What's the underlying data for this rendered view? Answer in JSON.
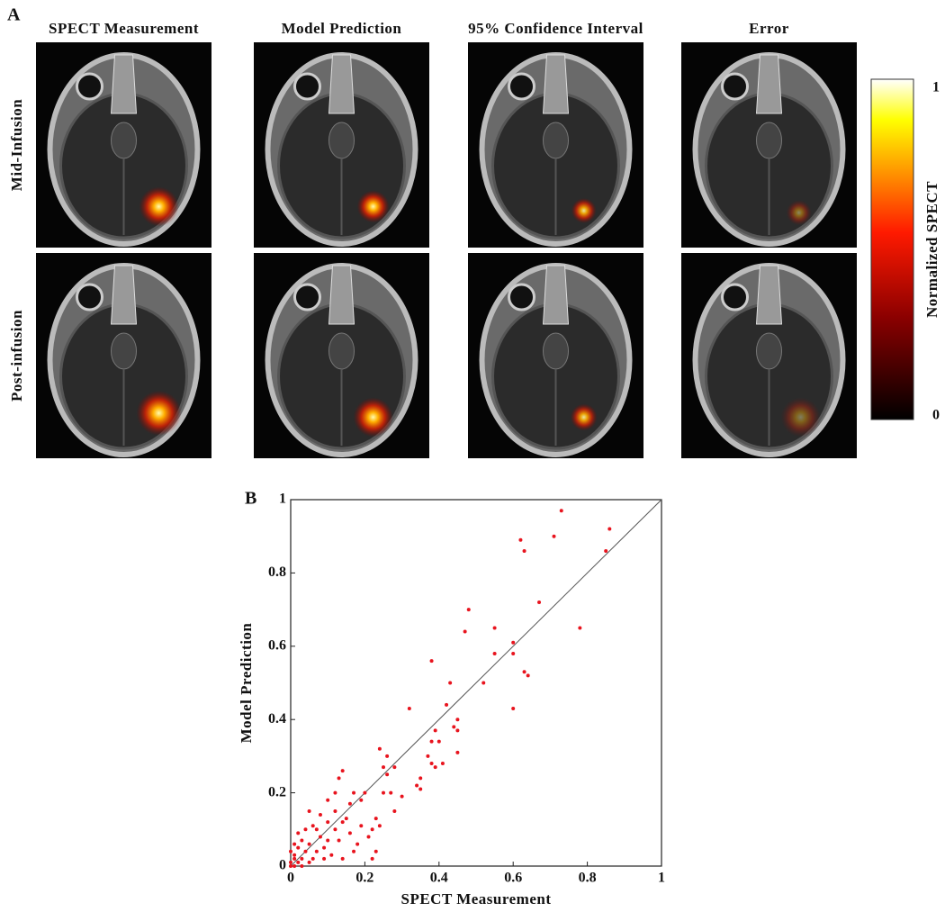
{
  "panel_labels": [
    "A",
    "B"
  ],
  "panel_a": {
    "column_titles": [
      "SPECT Measurement",
      "Model Prediction",
      "95% Confidence Interval",
      "Error"
    ],
    "row_labels": [
      "Mid-Infusion",
      "Post-infusion"
    ],
    "colorbar": {
      "label": "Normalized SPECT",
      "lim": [
        0,
        1
      ],
      "ticks": [
        0,
        1
      ]
    }
  },
  "chart_data": {
    "type": "scatter",
    "xlabel": "SPECT Measurement",
    "ylabel": "Model Prediction",
    "color": "#e8141e",
    "identity_line": true,
    "xlim": [
      0,
      1
    ],
    "ylim": [
      0,
      1
    ],
    "xticks": [
      0,
      0.2,
      0.4,
      0.6,
      0.8,
      1
    ],
    "yticks": [
      0,
      0.2,
      0.4,
      0.6,
      0.8,
      1
    ],
    "x": [
      0.73,
      0.62,
      0.71,
      0.63,
      0.86,
      0.85,
      0.67,
      0.78,
      0.48,
      0.55,
      0.47,
      0.6,
      0.55,
      0.6,
      0.63,
      0.64,
      0.52,
      0.6,
      0.38,
      0.43,
      0.32,
      0.42,
      0.45,
      0.44,
      0.45,
      0.39,
      0.45,
      0.38,
      0.4,
      0.37,
      0.38,
      0.39,
      0.41,
      0.35,
      0.34,
      0.35,
      0.28,
      0.26,
      0.25,
      0.24,
      0.26,
      0.27,
      0.3,
      0.25,
      0.28,
      0.23,
      0.22,
      0.24,
      0.2,
      0.19,
      0.16,
      0.14,
      0.13,
      0.17,
      0.12,
      0.1,
      0.15,
      0.14,
      0.1,
      0.12,
      0.18,
      0.17,
      0.23,
      0.22,
      0.14,
      0.08,
      0.07,
      0.05,
      0.04,
      0.06,
      0.03,
      0.02,
      0.01,
      0.02,
      0.0,
      0.01,
      0.03,
      0.04,
      0.09,
      0.11,
      0.05,
      0.08,
      0.13,
      0.01,
      0.0,
      0.02,
      0.06,
      0.09,
      0.12,
      0.16,
      0.19,
      0.21,
      0.03,
      0.05,
      0.0,
      0.01,
      0.07,
      0.1
    ],
    "values": [
      0.97,
      0.89,
      0.9,
      0.86,
      0.92,
      0.86,
      0.72,
      0.65,
      0.7,
      0.65,
      0.64,
      0.61,
      0.58,
      0.58,
      0.53,
      0.52,
      0.5,
      0.43,
      0.56,
      0.5,
      0.43,
      0.44,
      0.4,
      0.38,
      0.37,
      0.37,
      0.31,
      0.34,
      0.34,
      0.3,
      0.28,
      0.27,
      0.28,
      0.24,
      0.22,
      0.21,
      0.27,
      0.25,
      0.27,
      0.32,
      0.3,
      0.2,
      0.19,
      0.2,
      0.15,
      0.13,
      0.1,
      0.11,
      0.2,
      0.18,
      0.17,
      0.26,
      0.24,
      0.2,
      0.2,
      0.18,
      0.13,
      0.12,
      0.12,
      0.1,
      0.06,
      0.04,
      0.04,
      0.02,
      0.02,
      0.08,
      0.1,
      0.06,
      0.04,
      0.02,
      0.07,
      0.05,
      0.03,
      0.01,
      0.01,
      0.0,
      0.02,
      0.1,
      0.05,
      0.03,
      0.15,
      0.14,
      0.07,
      0.06,
      0.04,
      0.09,
      0.11,
      0.02,
      0.15,
      0.09,
      0.11,
      0.08,
      0.0,
      0.01,
      0.0,
      0.02,
      0.04,
      0.07
    ]
  }
}
